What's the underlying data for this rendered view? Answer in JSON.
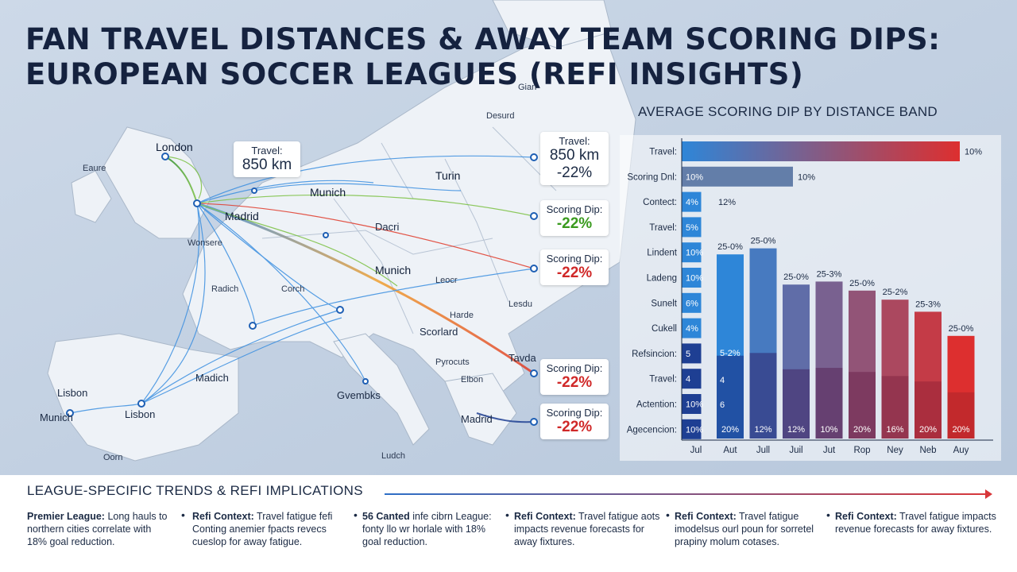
{
  "title_line1": "FAN TRAVEL DISTANCES & AWAY TEAM SCORING DIPS:",
  "title_line2": "EUROPEAN SOCCER LEAGUES (REFI INSIGHTS)",
  "map": {
    "cities": [
      {
        "id": "london",
        "text": "London"
      },
      {
        "id": "eaure",
        "text": "Eaure"
      },
      {
        "id": "madrid1",
        "text": "Madrid"
      },
      {
        "id": "munich1",
        "text": "Munich"
      },
      {
        "id": "turin",
        "text": "Turin"
      },
      {
        "id": "dacri",
        "text": "Dacri"
      },
      {
        "id": "munich2",
        "text": "Munich"
      },
      {
        "id": "leocr",
        "text": "Leocr"
      },
      {
        "id": "lesdu",
        "text": "Lesdu"
      },
      {
        "id": "scorlard",
        "text": "Scorlard"
      },
      {
        "id": "harde",
        "text": "Harde"
      },
      {
        "id": "tavda",
        "text": "Tavda"
      },
      {
        "id": "pyrocuts",
        "text": "Pyrocuts"
      },
      {
        "id": "elbon",
        "text": "Elbon"
      },
      {
        "id": "madrid2",
        "text": "Madrid"
      },
      {
        "id": "lisbon1",
        "text": "Lisbon"
      },
      {
        "id": "lisbon2",
        "text": "Lisbon"
      },
      {
        "id": "munich3",
        "text": "Munich"
      },
      {
        "id": "madich",
        "text": "Madich"
      },
      {
        "id": "gvembks",
        "text": "Gvembks"
      },
      {
        "id": "ludch",
        "text": "Ludch"
      },
      {
        "id": "desurd",
        "text": "Desurd"
      },
      {
        "id": "gian",
        "text": "Gian"
      },
      {
        "id": "wonsere",
        "text": "Wonsere"
      },
      {
        "id": "radich",
        "text": "Radich"
      },
      {
        "id": "corch",
        "text": "Corch"
      },
      {
        "id": "oorn",
        "text": "Oorn"
      }
    ],
    "callouts": {
      "travel_left": {
        "label": "Travel:",
        "value": "850 km"
      },
      "travel_right": {
        "label": "Travel:",
        "value": "850 km",
        "dip": "-22%"
      },
      "dip1": {
        "label": "Scoring Dip:",
        "value": "-22%",
        "color": "#3a9a1e"
      },
      "dip2": {
        "label": "Scoring Dip:",
        "value": "-22%",
        "color": "#d02828"
      },
      "dip3": {
        "label": "Scoring Dip:",
        "value": "-22%",
        "color": "#d02828"
      },
      "dip4": {
        "label": "Scoring Dip:",
        "value": "-22%",
        "color": "#d02828"
      }
    }
  },
  "chart_title": "AVERAGE SCORING DIP BY DISTANCE BAND",
  "chart_data": {
    "type": "bar",
    "horizontal": {
      "categories": [
        "Travel:",
        "Scoring Dnl:",
        "Contect:",
        "Travel:",
        "Lindent",
        "Ladeng",
        "Sunelt",
        "Cukell",
        "Refsincion:",
        "Travel:",
        "Actention:",
        "Agecencion:"
      ],
      "values": [
        100,
        40,
        7,
        7,
        7,
        7,
        7,
        7,
        7,
        7,
        7,
        7
      ],
      "inner_labels": [
        "",
        "10%",
        "4%",
        "5%",
        "10%",
        "10%",
        "6%",
        "4%",
        "5",
        "4",
        "10%",
        "10%"
      ],
      "end_labels": [
        "10%",
        "10%",
        "",
        "",
        "",
        "",
        "",
        "",
        "",
        "",
        "",
        ""
      ]
    },
    "vertical": {
      "categories": [
        "Aut",
        "Jull",
        "Juil",
        "Jut",
        "Rop",
        "Ney",
        "Neb",
        "Auy"
      ],
      "heights": [
        61,
        63,
        51,
        52,
        49,
        46,
        42,
        34
      ],
      "top_labels": [
        "25-0%",
        "25-0%",
        "25-0%",
        "25-3%",
        "25-0%",
        "25-2%",
        "25-3%",
        "25-0%"
      ],
      "base_labels": [
        "20%",
        "12%",
        "12%",
        "10%",
        "20%",
        "16%",
        "20%",
        "20%"
      ],
      "extra_labels_first": [
        "12%",
        "5-2%",
        "4",
        "6"
      ]
    },
    "first_x_tick": "Jul",
    "colors": {
      "start": "#2e7bd6",
      "end": "#dd2f2f",
      "dark": "#1e3f93"
    }
  },
  "footer": {
    "title": "LEAGUE-SPECIFIC TRENDS & REFI IMPLICATIONS",
    "col1_bold": "Premier League:",
    "col1_text": "Long hauls to northern cities correlate with 18% goal reduction.",
    "col2_bold": "Refi Context:",
    "col2_text": "Travel fatigue fefi Conting anemier fpacts revecs cueslop for away fatigue.",
    "col3_bold": "56 Canted",
    "col3_text": "infe cibrn League: fonty llo wr horlale with 18% goal reduction.",
    "col4_bold": "Refi Context:",
    "col4_text": "Travel fatigue aots impacts revenue forecasts for away fixtures.",
    "col5_bold": "Refi Context:",
    "col5_text": "Travel fatigue imodelsus ourl poun for sorretel prapiny molum cotases.",
    "col6_bold": "Refi Context:",
    "col6_text": "Travel fatigue impacts revenue forecasts for away fixtures."
  }
}
